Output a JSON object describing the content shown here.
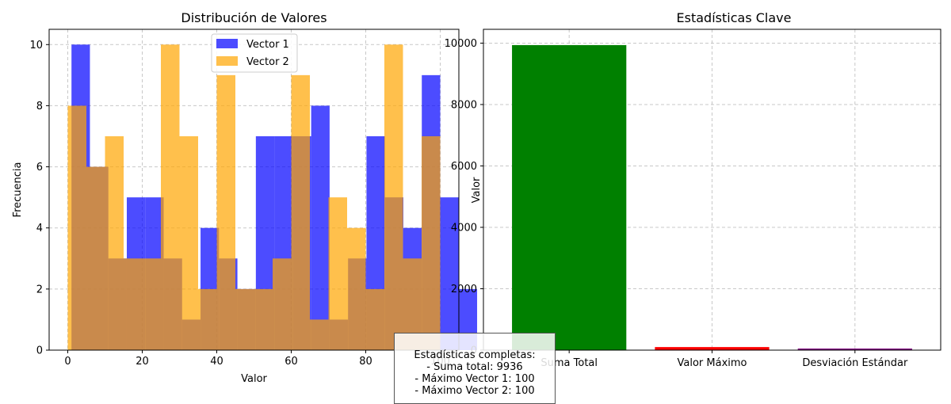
{
  "chart_data": [
    {
      "type": "bar",
      "subtype": "histogram",
      "title": "Distribución de Valores",
      "xlabel": "Valor",
      "ylabel": "Frecuencia",
      "xlim": [
        -5,
        105
      ],
      "ylim": [
        0,
        10.5
      ],
      "xticks": [
        0,
        20,
        40,
        60,
        80,
        100
      ],
      "yticks": [
        0,
        2,
        4,
        6,
        8,
        10
      ],
      "grid": true,
      "legend_position": "top-center",
      "series": [
        {
          "name": "Vector 1",
          "color": "#0000ff",
          "opacity": 0.7,
          "bin_start": 1,
          "bin_width": 4.95,
          "values": [
            10,
            6,
            3,
            5,
            5,
            3,
            1,
            4,
            3,
            2,
            7,
            7,
            7,
            8,
            1,
            3,
            7,
            5,
            4,
            9,
            5,
            2
          ]
        },
        {
          "name": "Vector 2",
          "color": "#ffa500",
          "opacity": 0.7,
          "bin_start": 0,
          "bin_width": 5,
          "values": [
            8,
            6,
            7,
            3,
            3,
            10,
            7,
            2,
            9,
            2,
            2,
            3,
            9,
            1,
            5,
            4,
            2,
            10,
            3,
            7
          ]
        }
      ]
    },
    {
      "type": "bar",
      "title": "Estadísticas Clave",
      "xlabel": "",
      "ylabel": "Valor",
      "ylim": [
        0,
        10450
      ],
      "yticks": [
        0,
        2000,
        4000,
        6000,
        8000,
        10000
      ],
      "grid": true,
      "categories": [
        "Suma Total",
        "Valor Máximo",
        "Desviación Estándar"
      ],
      "values": [
        9936,
        100,
        29
      ],
      "colors": [
        "#008000",
        "#ff0000",
        "#800080"
      ]
    }
  ],
  "stats_box": {
    "lines": [
      "Estadísticas completas:",
      "- Suma total: 9936",
      "- Máximo Vector 1: 100",
      "- Máximo Vector 2: 100"
    ]
  }
}
